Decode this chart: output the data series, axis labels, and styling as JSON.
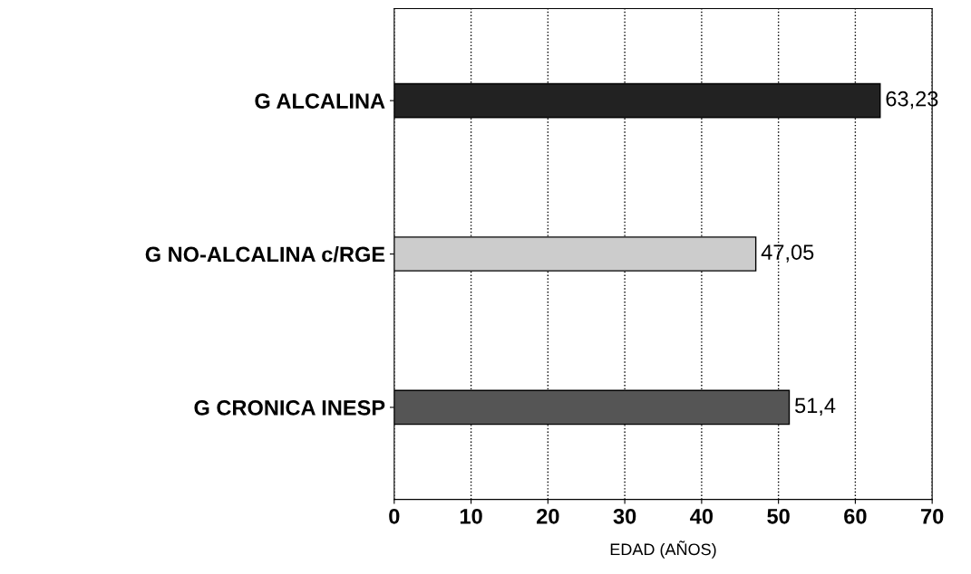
{
  "chart_data": {
    "type": "bar",
    "orientation": "horizontal",
    "xlabel": "EDAD (AÑOS)",
    "categories": [
      "G ALCALINA",
      "G NO-ALCALINA c/RGE",
      "G CRONICA INESP"
    ],
    "values": [
      63.23,
      47.05,
      51.4
    ],
    "colors": [
      "#222222",
      "#cccccc",
      "#555555"
    ],
    "value_labels": [
      "63,23",
      "47,05",
      "51,4"
    ],
    "xlim": [
      0,
      70
    ],
    "xticks": [
      0,
      10,
      20,
      30,
      40,
      50,
      60,
      70
    ],
    "grid": "x"
  }
}
